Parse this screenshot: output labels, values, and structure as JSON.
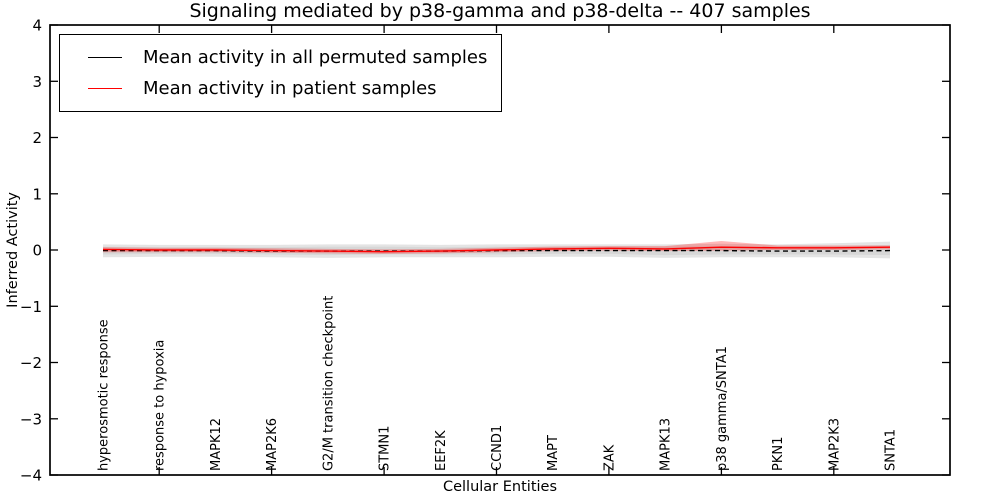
{
  "chart_data": {
    "type": "line",
    "title": "Signaling mediated by p38-gamma and p38-delta -- 407 samples",
    "xlabel": "Cellular Entities",
    "ylabel": "Inferred Activity",
    "ylim": [
      -4,
      4
    ],
    "yticks": [
      -4,
      -3,
      -2,
      -1,
      0,
      1,
      2,
      3,
      4
    ],
    "grid": false,
    "legend_position": "upper left",
    "categories": [
      "hyperosmotic response",
      "response to hypoxia",
      "MAPK12",
      "MAP2K6",
      "G2/M transition checkpoint",
      "STMN1",
      "EEF2K",
      "CCND1",
      "MAPT",
      "ZAK",
      "MAPK13",
      "p38 gamma/SNTA1",
      "PKN1",
      "MAP2K3",
      "SNTA1"
    ],
    "legend": [
      {
        "label": "Mean activity in all permuted samples",
        "color": "#000000"
      },
      {
        "label": "Mean activity in patient samples",
        "color": "#ff0000"
      }
    ],
    "series": [
      {
        "name": "Mean activity in all permuted samples",
        "color": "#000000",
        "style": "dashed",
        "values": [
          -0.01,
          -0.01,
          -0.01,
          -0.02,
          -0.02,
          -0.02,
          -0.02,
          -0.01,
          -0.01,
          -0.01,
          -0.01,
          -0.01,
          -0.02,
          -0.02,
          -0.01
        ]
      },
      {
        "name": "Mean activity in patient samples",
        "color": "#ff0000",
        "style": "solid",
        "values": [
          0.01,
          0.0,
          0.0,
          -0.01,
          -0.02,
          -0.03,
          -0.02,
          0.0,
          0.02,
          0.03,
          0.02,
          0.05,
          0.04,
          0.04,
          0.05
        ]
      }
    ],
    "bands": [
      {
        "name": "permuted-range-outer",
        "color": "#e4e4e4",
        "upper": [
          0.1,
          0.09,
          0.09,
          0.09,
          0.1,
          0.1,
          0.09,
          0.1,
          0.1,
          0.1,
          0.1,
          0.11,
          0.1,
          0.12,
          0.15
        ],
        "lower": [
          -0.13,
          -0.12,
          -0.12,
          -0.13,
          -0.14,
          -0.13,
          -0.13,
          -0.13,
          -0.12,
          -0.12,
          -0.14,
          -0.13,
          -0.13,
          -0.13,
          -0.15
        ]
      },
      {
        "name": "permuted-range-inner",
        "color": "#d7d7d7",
        "upper": [
          0.06,
          0.05,
          0.05,
          0.05,
          0.06,
          0.06,
          0.05,
          0.06,
          0.06,
          0.06,
          0.06,
          0.07,
          0.06,
          0.07,
          0.09
        ],
        "lower": [
          -0.08,
          -0.07,
          -0.07,
          -0.08,
          -0.09,
          -0.08,
          -0.08,
          -0.08,
          -0.07,
          -0.07,
          -0.09,
          -0.08,
          -0.08,
          -0.08,
          -0.09
        ]
      },
      {
        "name": "patient-range",
        "color": "rgba(255,0,0,0.28)",
        "upper": [
          0.05,
          0.04,
          0.04,
          0.03,
          0.02,
          0.01,
          0.02,
          0.04,
          0.06,
          0.07,
          0.07,
          0.16,
          0.08,
          0.08,
          0.08
        ],
        "lower": [
          -0.04,
          -0.04,
          -0.04,
          -0.05,
          -0.06,
          -0.07,
          -0.06,
          -0.04,
          -0.02,
          -0.01,
          -0.02,
          -0.01,
          0.0,
          0.0,
          0.01
        ]
      }
    ]
  }
}
